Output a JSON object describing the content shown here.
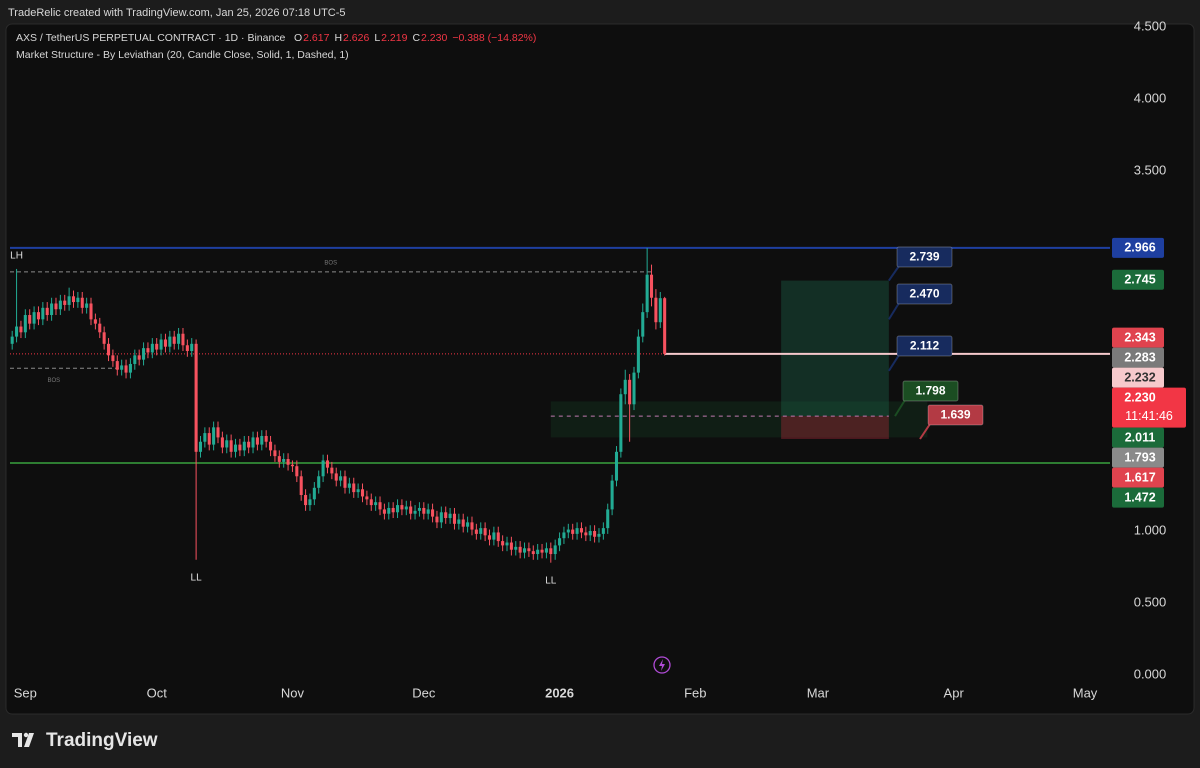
{
  "header": "TradeRelic created with TradingView.com, Jan 25, 2026 07:18 UTC-5",
  "chart_data": {
    "type": "candlestick",
    "title": "AXS / TetherUS PERPETUAL CONTRACT · 1D · Binance",
    "legend": [
      [
        "O",
        "2.617"
      ],
      [
        "H",
        "2.626"
      ],
      [
        "L",
        "2.219"
      ],
      [
        "C",
        "2.230"
      ],
      [
        "",
        "−0.388 (−14.82%)"
      ]
    ],
    "indicator": "Market Structure - By Leviathan (20, Candle Close, Solid, 1, Dashed, 1)",
    "color_up": "#22ab94",
    "color_down": "#f7525f",
    "xlim": [
      -0.5,
      250.7
    ],
    "xticks": [
      {
        "value": 3,
        "label": "Sep"
      },
      {
        "value": 33,
        "label": "Oct"
      },
      {
        "value": 64,
        "label": "Nov"
      },
      {
        "value": 94,
        "label": "Dec"
      },
      {
        "value": 125,
        "label": "2026"
      },
      {
        "value": 156,
        "label": "Feb"
      },
      {
        "value": 184,
        "label": "Mar"
      },
      {
        "value": 215,
        "label": "Apr"
      },
      {
        "value": 245,
        "label": "May"
      }
    ],
    "ylim": [
      -0.257,
      4.535
    ],
    "yticks": [
      {
        "value": 0,
        "label": "0.000"
      },
      {
        "value": 0.5,
        "label": "0.500"
      },
      {
        "value": 1,
        "label": "1.000"
      },
      {
        "value": 3.5,
        "label": "3.500"
      },
      {
        "value": 4,
        "label": "4.000"
      },
      {
        "value": 4.5,
        "label": "4.500"
      }
    ],
    "candles": [
      [
        2.3,
        2.39,
        2.26,
        2.35
      ],
      [
        2.35,
        2.82,
        2.31,
        2.42
      ],
      [
        2.42,
        2.46,
        2.34,
        2.38
      ],
      [
        2.38,
        2.54,
        2.34,
        2.5
      ],
      [
        2.5,
        2.54,
        2.4,
        2.44
      ],
      [
        2.44,
        2.56,
        2.4,
        2.52
      ],
      [
        2.52,
        2.56,
        2.43,
        2.47
      ],
      [
        2.47,
        2.59,
        2.43,
        2.55
      ],
      [
        2.55,
        2.59,
        2.46,
        2.5
      ],
      [
        2.5,
        2.62,
        2.46,
        2.58
      ],
      [
        2.58,
        2.62,
        2.5,
        2.54
      ],
      [
        2.54,
        2.64,
        2.5,
        2.6
      ],
      [
        2.6,
        2.64,
        2.53,
        2.57
      ],
      [
        2.57,
        2.69,
        2.53,
        2.63
      ],
      [
        2.63,
        2.67,
        2.55,
        2.59
      ],
      [
        2.59,
        2.66,
        2.55,
        2.62
      ],
      [
        2.62,
        2.66,
        2.51,
        2.55
      ],
      [
        2.55,
        2.62,
        2.51,
        2.58
      ],
      [
        2.58,
        2.62,
        2.43,
        2.47
      ],
      [
        2.47,
        2.51,
        2.4,
        2.44
      ],
      [
        2.44,
        2.48,
        2.34,
        2.38
      ],
      [
        2.38,
        2.42,
        2.26,
        2.3
      ],
      [
        2.3,
        2.34,
        2.18,
        2.22
      ],
      [
        2.22,
        2.26,
        2.14,
        2.18
      ],
      [
        2.18,
        2.22,
        2.08,
        2.12
      ],
      [
        2.12,
        2.19,
        2.08,
        2.15
      ],
      [
        2.15,
        2.19,
        2.06,
        2.1
      ],
      [
        2.1,
        2.2,
        2.06,
        2.16
      ],
      [
        2.16,
        2.26,
        2.12,
        2.22
      ],
      [
        2.22,
        2.26,
        2.15,
        2.19
      ],
      [
        2.19,
        2.31,
        2.15,
        2.27
      ],
      [
        2.27,
        2.31,
        2.2,
        2.24
      ],
      [
        2.24,
        2.34,
        2.2,
        2.3
      ],
      [
        2.3,
        2.34,
        2.22,
        2.26
      ],
      [
        2.26,
        2.37,
        2.22,
        2.33
      ],
      [
        2.33,
        2.37,
        2.24,
        2.28
      ],
      [
        2.28,
        2.39,
        2.24,
        2.35
      ],
      [
        2.35,
        2.39,
        2.26,
        2.3
      ],
      [
        2.3,
        2.41,
        2.26,
        2.37
      ],
      [
        2.37,
        2.41,
        2.25,
        2.29
      ],
      [
        2.29,
        2.33,
        2.21,
        2.25
      ],
      [
        2.25,
        2.34,
        2.21,
        2.3
      ],
      [
        2.3,
        2.33,
        0.8,
        1.55
      ],
      [
        1.55,
        1.66,
        1.51,
        1.62
      ],
      [
        1.62,
        1.72,
        1.58,
        1.68
      ],
      [
        1.68,
        1.72,
        1.56,
        1.6
      ],
      [
        1.6,
        1.76,
        1.56,
        1.72
      ],
      [
        1.72,
        1.76,
        1.61,
        1.65
      ],
      [
        1.65,
        1.69,
        1.54,
        1.58
      ],
      [
        1.58,
        1.67,
        1.54,
        1.63
      ],
      [
        1.63,
        1.67,
        1.51,
        1.55
      ],
      [
        1.55,
        1.64,
        1.51,
        1.6
      ],
      [
        1.6,
        1.64,
        1.52,
        1.56
      ],
      [
        1.56,
        1.66,
        1.52,
        1.62
      ],
      [
        1.62,
        1.66,
        1.54,
        1.58
      ],
      [
        1.58,
        1.69,
        1.54,
        1.65
      ],
      [
        1.65,
        1.69,
        1.56,
        1.6
      ],
      [
        1.6,
        1.7,
        1.56,
        1.66
      ],
      [
        1.66,
        1.7,
        1.58,
        1.62
      ],
      [
        1.62,
        1.66,
        1.52,
        1.56
      ],
      [
        1.56,
        1.6,
        1.48,
        1.52
      ],
      [
        1.52,
        1.56,
        1.44,
        1.48
      ],
      [
        1.48,
        1.54,
        1.44,
        1.5
      ],
      [
        1.5,
        1.54,
        1.42,
        1.46
      ],
      [
        1.46,
        1.49,
        1.41,
        1.45
      ],
      [
        1.45,
        1.49,
        1.34,
        1.38
      ],
      [
        1.38,
        1.42,
        1.21,
        1.25
      ],
      [
        1.25,
        1.29,
        1.14,
        1.18
      ],
      [
        1.18,
        1.26,
        1.14,
        1.22
      ],
      [
        1.22,
        1.34,
        1.18,
        1.3
      ],
      [
        1.3,
        1.42,
        1.26,
        1.38
      ],
      [
        1.38,
        1.53,
        1.34,
        1.49
      ],
      [
        1.49,
        1.53,
        1.4,
        1.44
      ],
      [
        1.44,
        1.48,
        1.36,
        1.4
      ],
      [
        1.4,
        1.44,
        1.31,
        1.35
      ],
      [
        1.35,
        1.42,
        1.31,
        1.38
      ],
      [
        1.38,
        1.42,
        1.26,
        1.3
      ],
      [
        1.3,
        1.37,
        1.26,
        1.33
      ],
      [
        1.33,
        1.37,
        1.23,
        1.27
      ],
      [
        1.27,
        1.33,
        1.23,
        1.29
      ],
      [
        1.29,
        1.33,
        1.2,
        1.24
      ],
      [
        1.24,
        1.28,
        1.18,
        1.22
      ],
      [
        1.22,
        1.26,
        1.14,
        1.18
      ],
      [
        1.18,
        1.24,
        1.14,
        1.2
      ],
      [
        1.2,
        1.24,
        1.11,
        1.15
      ],
      [
        1.15,
        1.19,
        1.08,
        1.12
      ],
      [
        1.12,
        1.2,
        1.08,
        1.16
      ],
      [
        1.16,
        1.2,
        1.09,
        1.13
      ],
      [
        1.13,
        1.22,
        1.09,
        1.18
      ],
      [
        1.18,
        1.22,
        1.11,
        1.15
      ],
      [
        1.15,
        1.21,
        1.11,
        1.17
      ],
      [
        1.17,
        1.21,
        1.08,
        1.12
      ],
      [
        1.12,
        1.18,
        1.08,
        1.14
      ],
      [
        1.14,
        1.2,
        1.1,
        1.16
      ],
      [
        1.16,
        1.2,
        1.08,
        1.12
      ],
      [
        1.12,
        1.19,
        1.08,
        1.15
      ],
      [
        1.15,
        1.19,
        1.06,
        1.1
      ],
      [
        1.1,
        1.14,
        1.02,
        1.06
      ],
      [
        1.06,
        1.17,
        1.02,
        1.13
      ],
      [
        1.13,
        1.17,
        1.05,
        1.09
      ],
      [
        1.09,
        1.16,
        1.05,
        1.12
      ],
      [
        1.12,
        1.16,
        1.01,
        1.05
      ],
      [
        1.05,
        1.12,
        1.01,
        1.08
      ],
      [
        1.08,
        1.12,
        0.99,
        1.03
      ],
      [
        1.03,
        1.1,
        0.99,
        1.06
      ],
      [
        1.06,
        1.1,
        0.97,
        1.01
      ],
      [
        1.01,
        1.05,
        0.94,
        0.98
      ],
      [
        0.98,
        1.06,
        0.94,
        1.02
      ],
      [
        1.02,
        1.06,
        0.93,
        0.97
      ],
      [
        0.97,
        1.01,
        0.9,
        0.94
      ],
      [
        0.94,
        1.03,
        0.9,
        0.99
      ],
      [
        0.99,
        1.03,
        0.89,
        0.93
      ],
      [
        0.93,
        0.97,
        0.86,
        0.9
      ],
      [
        0.9,
        0.96,
        0.86,
        0.92
      ],
      [
        0.92,
        0.96,
        0.83,
        0.87
      ],
      [
        0.87,
        0.93,
        0.83,
        0.89
      ],
      [
        0.89,
        0.93,
        0.81,
        0.85
      ],
      [
        0.85,
        0.92,
        0.81,
        0.88
      ],
      [
        0.88,
        0.92,
        0.82,
        0.86
      ],
      [
        0.86,
        0.9,
        0.8,
        0.84
      ],
      [
        0.84,
        0.91,
        0.8,
        0.87
      ],
      [
        0.87,
        0.91,
        0.81,
        0.85
      ],
      [
        0.85,
        0.92,
        0.81,
        0.88
      ],
      [
        0.88,
        0.92,
        0.78,
        0.84
      ],
      [
        0.84,
        0.94,
        0.8,
        0.9
      ],
      [
        0.9,
        0.99,
        0.86,
        0.95
      ],
      [
        0.95,
        1.03,
        0.91,
        0.99
      ],
      [
        0.99,
        1.05,
        0.95,
        1.01
      ],
      [
        1.01,
        1.05,
        0.94,
        0.98
      ],
      [
        0.98,
        1.06,
        0.94,
        1.02
      ],
      [
        1.02,
        1.06,
        0.95,
        0.99
      ],
      [
        0.99,
        1.03,
        0.93,
        0.97
      ],
      [
        0.97,
        1.04,
        0.93,
        1.0
      ],
      [
        1.0,
        1.04,
        0.92,
        0.96
      ],
      [
        0.96,
        1.02,
        0.92,
        0.98
      ],
      [
        0.98,
        1.06,
        0.94,
        1.02
      ],
      [
        1.02,
        1.19,
        0.98,
        1.15
      ],
      [
        1.15,
        1.39,
        1.11,
        1.35
      ],
      [
        1.35,
        1.59,
        1.31,
        1.55
      ],
      [
        1.55,
        1.99,
        1.51,
        1.95
      ],
      [
        1.95,
        2.12,
        1.88,
        2.05
      ],
      [
        2.05,
        2.09,
        1.62,
        1.88
      ],
      [
        1.88,
        2.14,
        1.84,
        2.1
      ],
      [
        2.1,
        2.4,
        2.06,
        2.35
      ],
      [
        2.35,
        2.58,
        2.31,
        2.52
      ],
      [
        2.52,
        2.966,
        2.48,
        2.78
      ],
      [
        2.78,
        2.85,
        2.56,
        2.62
      ],
      [
        2.62,
        2.68,
        2.4,
        2.45
      ],
      [
        2.45,
        2.66,
        2.41,
        2.617
      ],
      [
        2.617,
        2.626,
        2.219,
        2.23
      ]
    ],
    "levels": [
      {
        "value": 2.966,
        "color": "#1e3fa0"
      },
      {
        "value": 1.472,
        "color": "#2e7d32"
      }
    ],
    "structure": [
      {
        "label": "BOS",
        "value": 2.8,
        "x": [
          -0.5,
          146
        ]
      },
      {
        "label": "BOS",
        "value": 2.13,
        "x": [
          -0.5,
          25
        ]
      }
    ],
    "pivots": [
      {
        "label": "LH",
        "x": 1,
        "side": "high"
      },
      {
        "label": "LL",
        "x": 42,
        "side": "low"
      },
      {
        "label": "LL",
        "x": 123,
        "side": "low"
      }
    ],
    "zone": {
      "low": 1.65,
      "high": 1.9,
      "x": [
        123,
        209
      ]
    },
    "position": {
      "target": 2.739,
      "entry": 1.798,
      "stop": 1.639,
      "x": [
        175.6,
        200.2
      ]
    },
    "callouts": [
      {
        "value": 2.739,
        "color": "#172b5e"
      },
      {
        "value": 2.47,
        "label": "2.470",
        "color": "#172b5e"
      },
      {
        "value": 2.112,
        "color": "#172b5e"
      },
      {
        "value": 1.798,
        "color": "#1b4d22"
      },
      {
        "value": 1.639,
        "color": "#b33a44"
      }
    ],
    "price_labels": [
      {
        "value": 2.966,
        "color": "#1e3fa0"
      },
      {
        "value": 2.745,
        "color": "#1b6b3a"
      },
      {
        "value": 2.343,
        "color": "#e0434e"
      },
      {
        "value": 2.283,
        "color": "#7a7a7a"
      },
      {
        "value": 2.232,
        "color": "#f6c9cc"
      },
      {
        "value": 2.23,
        "label": "2.230",
        "color": "#f23645",
        "sub": "11:41:46"
      },
      {
        "value": 2.011,
        "color": "#1b6b3a"
      },
      {
        "value": 1.793,
        "color": "#8a8a8a"
      },
      {
        "value": 1.617,
        "color": "#e0434e"
      },
      {
        "value": 1.472,
        "color": "#1b6b3a"
      }
    ]
  },
  "footer": {
    "brand": "TradingView"
  }
}
